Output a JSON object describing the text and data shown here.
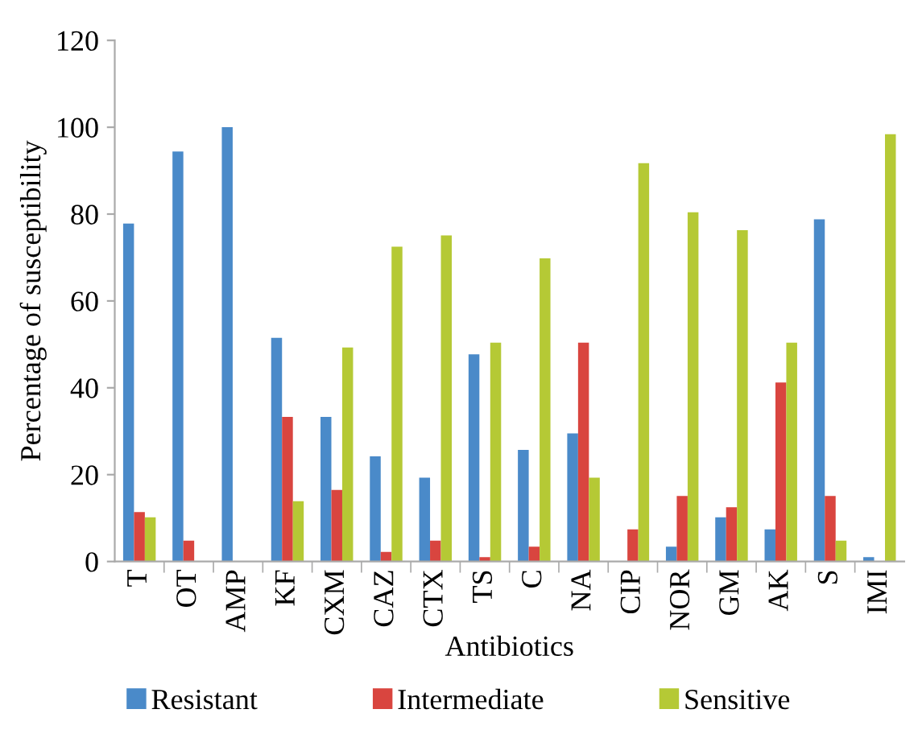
{
  "chart_data": {
    "type": "bar",
    "xlabel": "Antibiotics",
    "ylabel": "Percentage of susceptibility",
    "categories": [
      "T",
      "OT",
      "AMP",
      "KF",
      "CXM",
      "CAZ",
      "CTX",
      "TS",
      "C",
      "NA",
      "CIP",
      "NOR",
      "GM",
      "AK",
      "S",
      "IMI"
    ],
    "series": [
      {
        "name": "Resistant",
        "color": "#4a8ac9",
        "values": [
          77.8,
          94.4,
          100,
          51.5,
          33.3,
          24.2,
          19.3,
          47.7,
          25.7,
          29.5,
          0,
          3.4,
          10.2,
          7.4,
          78.8,
          1
        ]
      },
      {
        "name": "Intermediate",
        "color": "#d9453f",
        "values": [
          11.4,
          4.8,
          0,
          33.3,
          16.5,
          2.2,
          4.8,
          1,
          3.4,
          50.4,
          7.4,
          15.1,
          12.5,
          41.2,
          15.1,
          0
        ]
      },
      {
        "name": "Sensitive",
        "color": "#b5c935",
        "values": [
          10.2,
          0,
          0,
          13.9,
          49.3,
          72.5,
          75.1,
          50.4,
          69.8,
          19.3,
          91.7,
          80.4,
          76.3,
          50.4,
          4.8,
          98.4
        ]
      }
    ],
    "ylim": [
      0,
      120
    ],
    "yticks": [
      0,
      20,
      40,
      60,
      80,
      100,
      120
    ],
    "grid": false,
    "legend": "bottom"
  }
}
